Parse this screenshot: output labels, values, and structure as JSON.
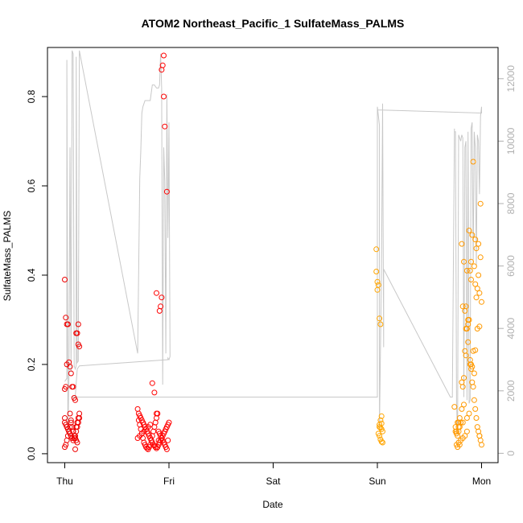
{
  "chart_data": {
    "type": "scatter",
    "title": "ATOM2 Northeast_Pacific_1 SulfateMass_PALMS",
    "xlabel": "Date",
    "ylabel": "SulfateMass_PALMS",
    "x_ticks": [
      "Thu",
      "Fri",
      "Sat",
      "Sun",
      "Mon"
    ],
    "x_range_days": [
      -0.25,
      4.15
    ],
    "ylim": [
      -0.02,
      0.91
    ],
    "y_ticks": [
      0.0,
      0.2,
      0.4,
      0.6,
      0.8
    ],
    "y2_ticks": [
      0,
      2000,
      4000,
      6000,
      8000,
      10000,
      12000
    ],
    "y2_range": [
      -300,
      13000
    ],
    "grid": false,
    "legend": "none",
    "colors": {
      "flight1": "#ee0000",
      "flight2": "#ff0000",
      "flight3": "#ffa500",
      "flight4": "#ff9900",
      "altitude": "#c8c8c8",
      "axis": "#000000",
      "axis2": "#b0b0b0"
    },
    "series": [
      {
        "color": "#ee0000",
        "x": [
          0.0,
          0.01,
          0.02,
          0.03,
          0.0,
          0.01,
          0.02,
          0.04,
          0.05,
          0.06,
          0.07,
          0.08,
          0.09,
          0.1,
          0.11,
          0.12,
          0.13,
          0.13,
          0.14,
          0.0,
          0.0,
          0.01,
          0.02,
          0.03,
          0.04,
          0.05,
          0.06,
          0.07,
          0.08,
          0.09,
          0.1,
          0.11,
          0.12,
          0.13,
          0.14,
          0.05,
          0.06,
          0.07,
          0.08,
          0.09,
          0.1,
          0.11,
          0.12,
          0.0,
          0.01,
          0.02,
          0.03,
          0.04,
          0.05,
          0.06,
          0.08,
          0.09,
          0.1,
          0.11,
          0.12,
          0.13,
          0.14
        ],
        "y": [
          0.39,
          0.305,
          0.29,
          0.29,
          0.145,
          0.15,
          0.2,
          0.205,
          0.195,
          0.18,
          0.15,
          0.15,
          0.125,
          0.12,
          0.27,
          0.27,
          0.29,
          0.245,
          0.24,
          0.08,
          0.07,
          0.065,
          0.06,
          0.055,
          0.05,
          0.045,
          0.04,
          0.035,
          0.03,
          0.035,
          0.04,
          0.05,
          0.06,
          0.07,
          0.08,
          0.09,
          0.075,
          0.06,
          0.05,
          0.04,
          0.035,
          0.03,
          0.025,
          0.015,
          0.02,
          0.03,
          0.04,
          0.05,
          0.06,
          0.07,
          0.05,
          0.04,
          0.01,
          0.06,
          0.07,
          0.08,
          0.09
        ]
      },
      {
        "color": "#ff0000",
        "x": [
          0.95,
          0.94,
          0.93,
          0.95,
          0.96,
          0.98,
          0.88,
          0.93,
          0.92,
          0.91,
          0.7,
          0.71,
          0.72,
          0.73,
          0.74,
          0.75,
          0.76,
          0.77,
          0.78,
          0.79,
          0.8,
          0.81,
          0.82,
          0.83,
          0.84,
          0.85,
          0.86,
          0.87,
          0.88,
          0.89,
          0.9,
          0.91,
          0.92,
          0.93,
          0.94,
          0.95,
          0.96,
          0.97,
          0.98,
          0.99,
          1.0,
          0.71,
          0.72,
          0.73,
          0.74,
          0.75,
          0.76,
          0.77,
          0.78,
          0.79,
          0.8,
          0.81,
          0.82,
          0.83,
          0.84,
          0.85,
          0.86,
          0.87,
          0.88,
          0.89,
          0.9,
          0.91,
          0.92,
          0.93,
          0.94,
          0.95,
          0.96,
          0.97,
          0.98,
          0.99,
          0.7,
          0.72,
          0.74,
          0.76,
          0.78,
          0.8,
          0.82,
          0.84,
          0.86,
          0.88,
          0.9
        ],
        "y": [
          0.892,
          0.87,
          0.86,
          0.8,
          0.733,
          0.587,
          0.36,
          0.35,
          0.33,
          0.32,
          0.1,
          0.09,
          0.085,
          0.08,
          0.075,
          0.07,
          0.065,
          0.06,
          0.055,
          0.05,
          0.045,
          0.04,
          0.035,
          0.03,
          0.025,
          0.02,
          0.018,
          0.015,
          0.012,
          0.015,
          0.02,
          0.025,
          0.03,
          0.035,
          0.04,
          0.045,
          0.05,
          0.055,
          0.06,
          0.065,
          0.07,
          0.075,
          0.065,
          0.055,
          0.045,
          0.035,
          0.025,
          0.02,
          0.015,
          0.012,
          0.01,
          0.015,
          0.02,
          0.03,
          0.04,
          0.05,
          0.06,
          0.07,
          0.08,
          0.09,
          0.05,
          0.045,
          0.04,
          0.035,
          0.03,
          0.025,
          0.02,
          0.015,
          0.01,
          0.03,
          0.035,
          0.04,
          0.045,
          0.05,
          0.055,
          0.06,
          0.065,
          0.158,
          0.137,
          0.09,
          0.03
        ]
      },
      {
        "color": "#ffa500",
        "x": [
          2.99,
          2.99,
          3.0,
          3.01,
          3.0,
          3.02,
          3.03,
          3.04,
          3.03,
          3.04,
          3.02,
          3.03,
          3.04,
          3.05,
          3.01,
          3.02,
          3.03,
          3.04,
          3.05,
          3.02
        ],
        "y": [
          0.458,
          0.408,
          0.385,
          0.378,
          0.367,
          0.303,
          0.29,
          0.084,
          0.075,
          0.068,
          0.06,
          0.058,
          0.055,
          0.05,
          0.045,
          0.04,
          0.032,
          0.027,
          0.025,
          0.065
        ]
      },
      {
        "color": "#ff9900",
        "x": [
          3.75,
          3.76,
          3.77,
          3.78,
          3.79,
          3.8,
          3.81,
          3.82,
          3.83,
          3.84,
          3.85,
          3.86,
          3.87,
          3.88,
          3.89,
          3.9,
          3.91,
          3.92,
          3.93,
          3.94,
          3.95,
          3.96,
          3.97,
          3.98,
          3.99,
          4.0,
          3.75,
          3.77,
          3.79,
          3.81,
          3.83,
          3.85,
          3.87,
          3.89,
          3.91,
          3.93,
          3.95,
          3.97,
          3.99,
          3.76,
          3.78,
          3.8,
          3.82,
          3.84,
          3.86,
          3.88,
          3.9,
          3.92,
          3.94,
          3.96,
          3.98,
          4.0,
          3.76,
          3.78,
          3.8,
          3.82,
          3.84,
          3.86,
          3.88,
          3.9,
          3.92,
          3.94,
          3.96,
          3.98,
          3.77,
          3.79,
          3.81,
          3.83,
          3.85,
          3.87,
          3.89,
          3.91,
          3.93,
          3.95,
          3.97,
          3.99,
          3.74,
          3.78,
          3.82,
          3.86,
          3.9,
          3.94,
          3.98
        ],
        "y": [
          0.05,
          0.045,
          0.04,
          0.05,
          0.06,
          0.07,
          0.16,
          0.15,
          0.17,
          0.23,
          0.22,
          0.28,
          0.29,
          0.3,
          0.2,
          0.19,
          0.16,
          0.15,
          0.12,
          0.1,
          0.08,
          0.06,
          0.05,
          0.04,
          0.03,
          0.02,
          0.06,
          0.07,
          0.08,
          0.47,
          0.43,
          0.33,
          0.25,
          0.21,
          0.195,
          0.18,
          0.46,
          0.47,
          0.44,
          0.05,
          0.06,
          0.07,
          0.33,
          0.32,
          0.41,
          0.5,
          0.43,
          0.654,
          0.48,
          0.37,
          0.36,
          0.34,
          0.02,
          0.025,
          0.03,
          0.035,
          0.04,
          0.05,
          0.09,
          0.2,
          0.23,
          0.232,
          0.28,
          0.285,
          0.015,
          0.02,
          0.1,
          0.11,
          0.28,
          0.3,
          0.41,
          0.49,
          0.42,
          0.35,
          0.4,
          0.56,
          0.105,
          0.07,
          0.07,
          0.08,
          0.39,
          0.38,
          0.04
        ]
      }
    ],
    "altitude_overlay": {
      "color": "#c8c8c8",
      "x": [
        0.0,
        0.02,
        0.02,
        0.03,
        0.04,
        0.05,
        0.06,
        0.07,
        0.08,
        0.09,
        0.1,
        0.11,
        0.11,
        0.12,
        0.13,
        0.13,
        0.14,
        0.14,
        0.7,
        0.72,
        0.73,
        0.74,
        0.75,
        0.76,
        0.77,
        0.78,
        0.8,
        0.82,
        0.84,
        0.86,
        0.88,
        0.9,
        0.91,
        0.92,
        0.93,
        0.94,
        0.95,
        0.96,
        0.97,
        0.98,
        0.99,
        1.0,
        1.01,
        1.0,
        0.99,
        0.99,
        0.14,
        0.12,
        0.1,
        0.08,
        0.06,
        0.06,
        3.0,
        3.0,
        3.02,
        3.02,
        3.04,
        3.05,
        3.06,
        3.06,
        3.7,
        3.72,
        3.74,
        3.74,
        3.75,
        3.76,
        3.77,
        3.78,
        3.79,
        3.8,
        3.81,
        3.82,
        3.83,
        3.84,
        3.85,
        3.86,
        3.87,
        3.88,
        3.89,
        3.9,
        3.91,
        3.92,
        3.93,
        3.94,
        3.95,
        3.96,
        3.97,
        3.98,
        3.99,
        4.0,
        4.0,
        3.0
      ],
      "y": [
        2300,
        2400,
        12600,
        600,
        2500,
        9800,
        2600,
        12900,
        12800,
        2800,
        2700,
        2800,
        12700,
        2900,
        2950,
        3000,
        12700,
        12900,
        3200,
        8800,
        9700,
        10900,
        11100,
        11200,
        11300,
        11300,
        11300,
        11300,
        11800,
        11800,
        11700,
        11700,
        11800,
        12800,
        11700,
        2200,
        9800,
        8700,
        3200,
        11500,
        6900,
        10600,
        3100,
        3000,
        3050,
        3000,
        2800,
        2700,
        1800,
        1800,
        1800,
        1800,
        1800,
        11100,
        10500,
        800,
        6000,
        11200,
        3400,
        5900,
        1800,
        1800,
        10400,
        10300,
        10300,
        1600,
        600,
        10200,
        10100,
        10000,
        10200,
        10100,
        1800,
        9800,
        10000,
        1700,
        10300,
        1600,
        1700,
        10400,
        10600,
        6100,
        10300,
        9800,
        6000,
        10200,
        10000,
        8300,
        10800,
        11100,
        10900,
        11000
      ]
    }
  }
}
